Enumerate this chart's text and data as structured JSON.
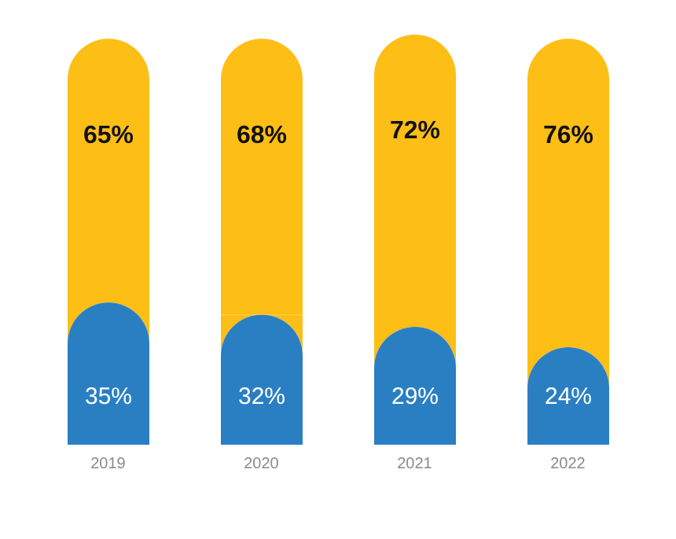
{
  "chart_data": {
    "type": "bar",
    "stacked": true,
    "categories": [
      "2019",
      "2020",
      "2021",
      "2022"
    ],
    "series": [
      {
        "color": "#2a7fc3",
        "values": [
          35,
          32,
          29,
          24
        ],
        "value_labels": [
          "35%",
          "32%",
          "29%",
          "24%"
        ]
      },
      {
        "color": "#fdbe16",
        "values": [
          65,
          68,
          72,
          76
        ],
        "value_labels": [
          "65%",
          "68%",
          "72%",
          "76%"
        ]
      }
    ]
  }
}
